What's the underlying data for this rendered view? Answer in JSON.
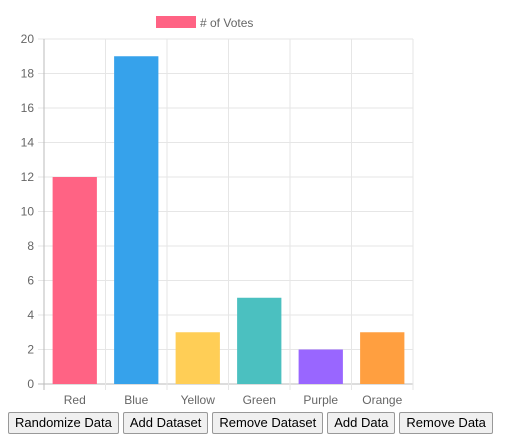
{
  "chart_data": {
    "type": "bar",
    "categories": [
      "Red",
      "Blue",
      "Yellow",
      "Green",
      "Purple",
      "Orange"
    ],
    "series": [
      {
        "name": "# of Votes",
        "values": [
          12,
          19,
          3,
          5,
          2,
          3
        ]
      }
    ],
    "ylim": [
      0,
      20
    ],
    "yticks": [
      "0",
      "2",
      "4",
      "6",
      "8",
      "10",
      "12",
      "14",
      "16",
      "18",
      "20"
    ],
    "grid": true,
    "legend_position": "top",
    "colors": [
      "#ff6384",
      "#36a2eb",
      "#ffce56",
      "#4bc0c0",
      "#9966ff",
      "#ff9f40"
    ]
  },
  "controls": {
    "randomize_label": "Randomize Data",
    "add_dataset_label": "Add Dataset",
    "remove_dataset_label": "Remove Dataset",
    "add_data_label": "Add Data",
    "remove_data_label": "Remove Data"
  }
}
